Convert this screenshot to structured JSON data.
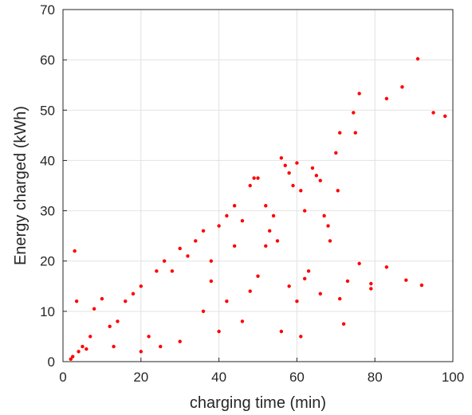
{
  "chart_data": {
    "type": "scatter",
    "xlabel": "charging time (min)",
    "ylabel": "Energy charged (kWh)",
    "xlim": [
      0,
      100
    ],
    "ylim": [
      0,
      70
    ],
    "x_ticks": [
      "0",
      "20",
      "40",
      "60",
      "80",
      "100"
    ],
    "y_ticks": [
      "0",
      "10",
      "20",
      "30",
      "40",
      "50",
      "60",
      "70"
    ],
    "grid": true,
    "legend": "none",
    "marker_color": "#ff0000",
    "series": [
      {
        "points": [
          [
            2,
            0.5
          ],
          [
            2.5,
            1
          ],
          [
            3,
            22
          ],
          [
            3.5,
            12
          ],
          [
            4,
            2
          ],
          [
            5,
            3
          ],
          [
            6,
            2.5
          ],
          [
            7,
            5
          ],
          [
            8,
            10.5
          ],
          [
            10,
            12.5
          ],
          [
            12,
            7
          ],
          [
            13,
            3
          ],
          [
            14,
            8
          ],
          [
            16,
            12
          ],
          [
            18,
            13.5
          ],
          [
            20,
            15
          ],
          [
            22,
            5
          ],
          [
            24,
            18
          ],
          [
            26,
            20
          ],
          [
            28,
            18
          ],
          [
            30,
            22.5
          ],
          [
            32,
            21
          ],
          [
            34,
            24
          ],
          [
            36,
            26
          ],
          [
            38,
            20
          ],
          [
            40,
            27
          ],
          [
            42,
            29
          ],
          [
            44,
            31
          ],
          [
            46,
            28
          ],
          [
            48,
            35
          ],
          [
            49,
            36.5
          ],
          [
            50,
            36.5
          ],
          [
            52,
            31
          ],
          [
            54,
            29
          ],
          [
            55,
            24
          ],
          [
            56,
            40.5
          ],
          [
            57,
            39
          ],
          [
            58,
            37.5
          ],
          [
            59,
            35
          ],
          [
            60,
            39.5
          ],
          [
            61,
            34
          ],
          [
            62,
            30
          ],
          [
            64,
            38.5
          ],
          [
            65,
            37
          ],
          [
            66,
            36
          ],
          [
            67,
            29
          ],
          [
            68,
            27
          ],
          [
            68.5,
            24
          ],
          [
            70,
            41.5
          ],
          [
            70.5,
            34
          ],
          [
            71,
            45.5
          ],
          [
            72,
            7.5
          ],
          [
            73,
            16
          ],
          [
            74.5,
            49.5
          ],
          [
            75,
            45.5
          ],
          [
            76,
            53.3
          ],
          [
            76,
            19.5
          ],
          [
            79,
            15.5
          ],
          [
            79,
            14.5
          ],
          [
            83,
            52.3
          ],
          [
            83,
            18.8
          ],
          [
            87,
            54.6
          ],
          [
            88,
            16.2
          ],
          [
            91,
            60.2
          ],
          [
            92,
            15.2
          ],
          [
            95,
            49.5
          ],
          [
            98,
            48.8
          ],
          [
            71,
            12.5
          ],
          [
            66,
            13.5
          ],
          [
            62,
            16.5
          ],
          [
            60,
            12
          ],
          [
            58,
            15
          ],
          [
            52,
            23
          ],
          [
            53,
            26
          ],
          [
            50,
            17
          ],
          [
            44,
            23
          ],
          [
            42,
            12
          ],
          [
            46,
            8
          ],
          [
            40,
            6
          ],
          [
            36,
            10
          ],
          [
            30,
            4
          ],
          [
            25,
            3
          ],
          [
            20,
            2
          ],
          [
            56,
            6
          ],
          [
            61,
            5
          ],
          [
            63,
            18
          ],
          [
            48,
            14
          ],
          [
            38,
            16
          ]
        ]
      }
    ]
  }
}
